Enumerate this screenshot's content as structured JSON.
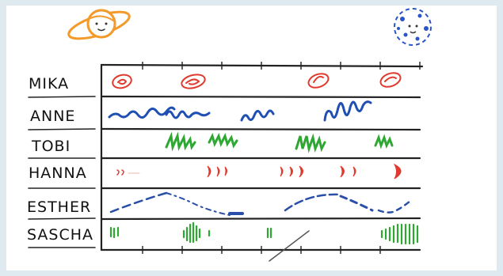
{
  "rows": [
    {
      "label": "MIKA"
    },
    {
      "label": "ANNE"
    },
    {
      "label": "TOBI"
    },
    {
      "label": "HANNA"
    },
    {
      "label": "ESTHER"
    },
    {
      "label": "SASCHA"
    }
  ],
  "colors": {
    "mika": "#e03a2e",
    "anne": "#1f4fb3",
    "tobi": "#2ea832",
    "hanna": "#e03a2e",
    "esther": "#2a4fa8",
    "sascha": "#2ea832",
    "planet": "#f39a2a",
    "moon": "#2a55c8"
  },
  "icons": [
    "planet-icon",
    "moon-icon"
  ]
}
